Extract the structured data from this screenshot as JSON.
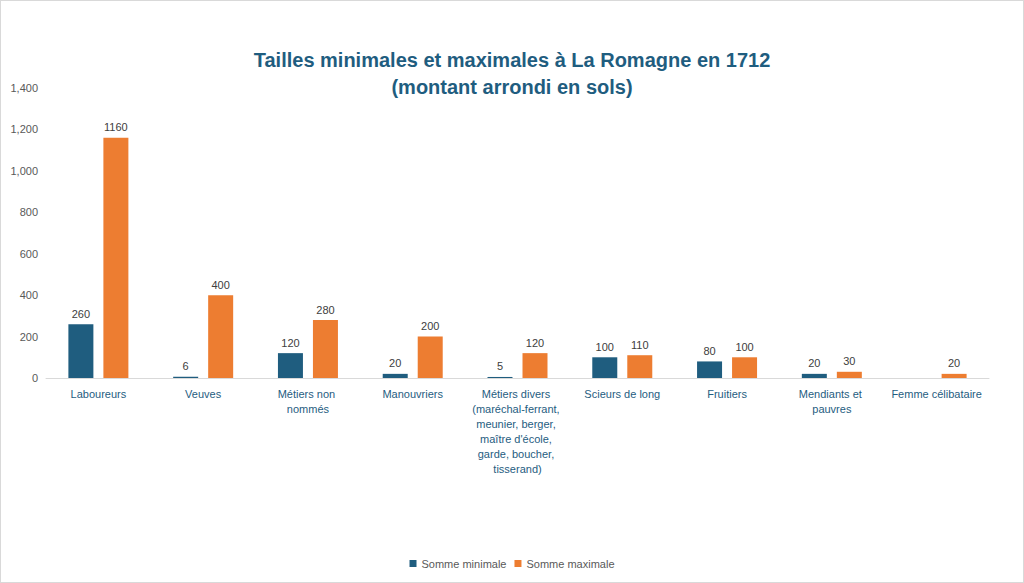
{
  "chart_data": {
    "type": "bar",
    "title": "Tailles minimales et maximales à La Romagne en 1712\n(montant arrondi en sols)",
    "categories": [
      "Laboureurs",
      "Veuves",
      "Métiers non nommés",
      "Manouvriers",
      "Métiers divers (maréchal-ferrant, meunier, berger, maître d'école, garde, boucher, tisserand)",
      "Scieurs de long",
      "Fruitiers",
      "Mendiants et pauvres",
      "Femme célibataire"
    ],
    "series": [
      {
        "name": "Somme minimale",
        "color": "#1f5d7f",
        "values": [
          260,
          6,
          120,
          20,
          5,
          100,
          80,
          20,
          null
        ]
      },
      {
        "name": "Somme maximale",
        "color": "#ed7d31",
        "values": [
          1160,
          400,
          280,
          200,
          120,
          110,
          100,
          30,
          20
        ]
      }
    ],
    "ylim": [
      0,
      1400
    ],
    "yticks": [
      0,
      200,
      400,
      600,
      800,
      1000,
      1200,
      1400
    ],
    "grid": false,
    "legend": "bottom",
    "data_labels": true
  }
}
